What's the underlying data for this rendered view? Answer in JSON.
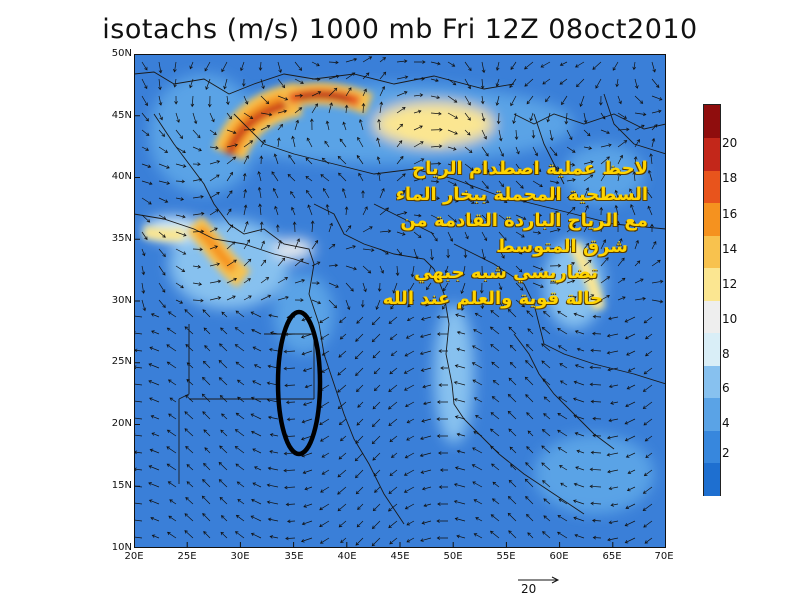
{
  "title": "isotachs (m/s) 1000 mb Fri 12Z 08oct2010",
  "lat_ticks": [
    "50N",
    "45N",
    "40N",
    "35N",
    "30N",
    "25N",
    "20N",
    "15N",
    "10N"
  ],
  "lon_ticks": [
    "20E",
    "25E",
    "30E",
    "35E",
    "40E",
    "45E",
    "50E",
    "55E",
    "60E",
    "65E",
    "70E"
  ],
  "colorbar": {
    "colors": [
      "#1e6fd0",
      "#3787dd",
      "#5aa3e6",
      "#87c1ef",
      "#d9eef7",
      "#eeeeee",
      "#fbe691",
      "#f8c24e",
      "#f5921f",
      "#e8541c",
      "#c3271a",
      "#8f0d0d"
    ],
    "labels": [
      "2",
      "4",
      "6",
      "8",
      "10",
      "12",
      "14",
      "16",
      "18",
      "20"
    ]
  },
  "annotation_lines": [
    "لاحظ عملية اصطدام الرياح",
    "السطحية المحملة ببخار الماء",
    "مع الرياح الباردة القادمة من",
    "شرق المتوسط",
    "تضاريسي شبه جبهي",
    "حالة قوية والعلم عند الله"
  ],
  "reference_vector_label": "20",
  "colors": {
    "background": "#3a7fd8",
    "annotation": "#ffd400",
    "ellipse": "#000000"
  }
}
